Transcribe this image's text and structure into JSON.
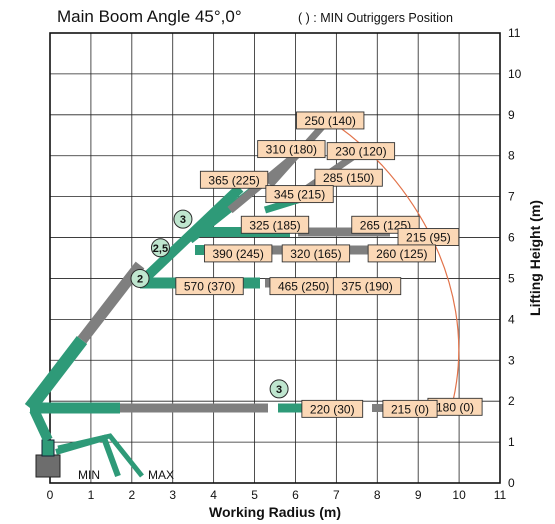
{
  "chart_data": {
    "type": "scatter",
    "title": "Main Boom Angle 45°,0°",
    "note": "( ) : MIN Outriggers Position",
    "xlabel": "Working Radius (m)",
    "ylabel": "Lifting Height (m)",
    "xlim": [
      0,
      11
    ],
    "ylim": [
      0,
      11
    ],
    "x_ticks": [
      "0",
      "1",
      "2",
      "3",
      "4",
      "5",
      "6",
      "7",
      "8",
      "9",
      "10",
      "11"
    ],
    "y_ticks": [
      "0",
      "1",
      "2",
      "3",
      "4",
      "5",
      "6",
      "7",
      "8",
      "9",
      "10",
      "11"
    ],
    "grid": true,
    "points": [
      {
        "label": "250 (140)",
        "x": 6.85,
        "y": 8.85
      },
      {
        "label": "310 (180)",
        "x": 5.9,
        "y": 8.15
      },
      {
        "label": "230 (120)",
        "x": 7.6,
        "y": 8.1
      },
      {
        "label": "365 (225)",
        "x": 4.5,
        "y": 7.4
      },
      {
        "label": "285 (150)",
        "x": 7.3,
        "y": 7.45
      },
      {
        "label": "345 (215)",
        "x": 6.1,
        "y": 7.05
      },
      {
        "label": "325 (185)",
        "x": 5.5,
        "y": 6.3
      },
      {
        "label": "265 (125)",
        "x": 8.2,
        "y": 6.3
      },
      {
        "label": "215 (95)",
        "x": 9.25,
        "y": 6.0
      },
      {
        "label": "390 (245)",
        "x": 4.6,
        "y": 5.6
      },
      {
        "label": "320 (165)",
        "x": 6.5,
        "y": 5.6
      },
      {
        "label": "260 (125)",
        "x": 8.6,
        "y": 5.6
      },
      {
        "label": "570 (370)",
        "x": 3.9,
        "y": 4.8
      },
      {
        "label": "465 (250)",
        "x": 6.2,
        "y": 4.8
      },
      {
        "label": "375 (190)",
        "x": 7.75,
        "y": 4.8
      },
      {
        "label": "180 (0)",
        "x": 9.9,
        "y": 1.85
      },
      {
        "label": "220 (30)",
        "x": 6.9,
        "y": 1.8
      },
      {
        "label": "215 (0)",
        "x": 8.8,
        "y": 1.8
      }
    ],
    "section_markers": [
      {
        "text": "3",
        "x": 3.25,
        "y": 6.45
      },
      {
        "text": "2,5",
        "x": 2.7,
        "y": 5.75
      },
      {
        "text": "2",
        "x": 2.2,
        "y": 5.0
      },
      {
        "text": "3",
        "x": 5.6,
        "y": 2.3
      }
    ],
    "footer_labels": {
      "min": "MIN",
      "max": "MAX"
    },
    "colors": {
      "boom": "#2e9a78",
      "boom_grey": "#7f7f7f",
      "label_fill": "#fbd8b6",
      "envelope": "#e2734a",
      "marker_fill": "#bfe6cf"
    }
  }
}
